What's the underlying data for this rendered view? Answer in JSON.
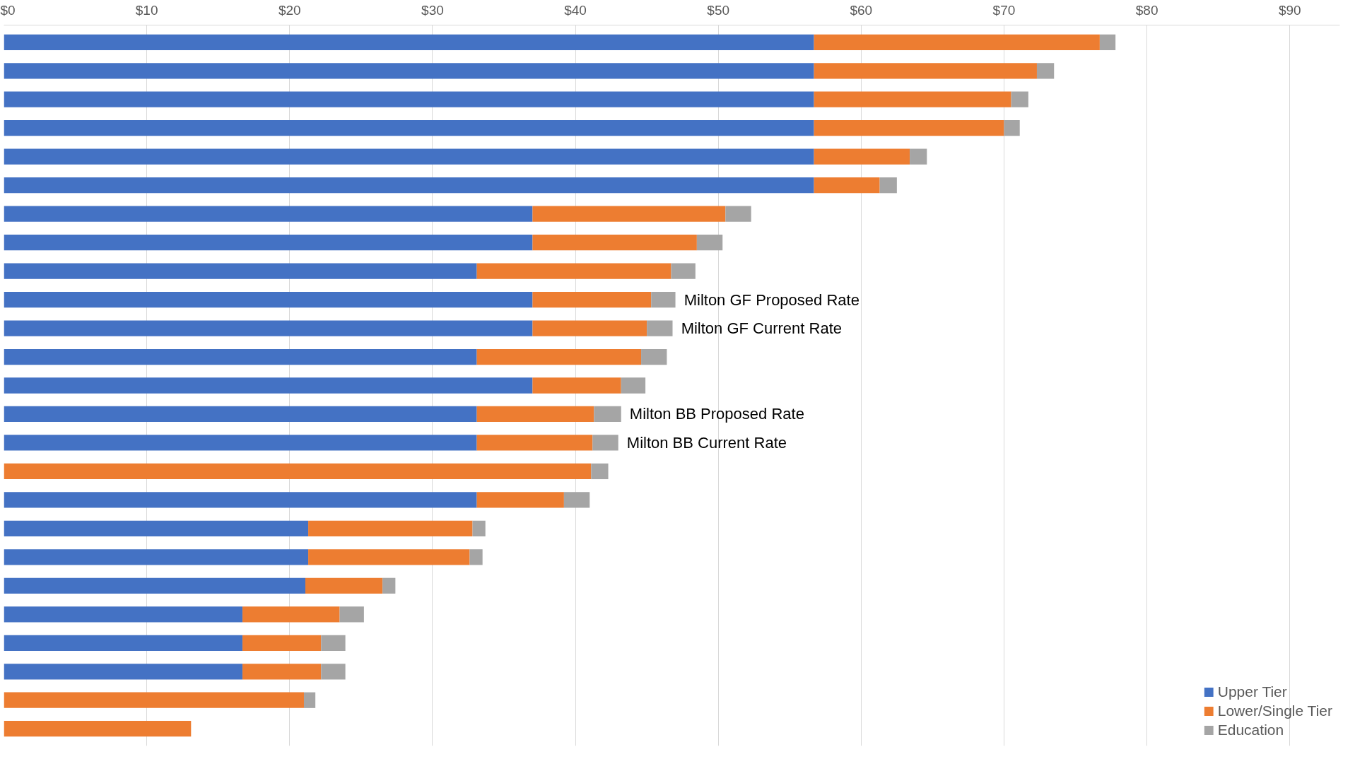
{
  "chart_data": {
    "type": "bar",
    "orientation": "horizontal",
    "stacked": true,
    "categories": [
      null,
      null,
      null,
      null,
      null,
      null,
      null,
      null,
      null,
      "Milton GF Proposed Rate",
      "Milton GF Current Rate",
      null,
      null,
      "Milton BB Proposed Rate",
      "Milton BB Current Rate",
      null,
      null,
      null,
      null,
      null,
      null,
      null,
      null,
      null,
      null
    ],
    "series": [
      {
        "name": "Upper Tier",
        "color": "#4472c4",
        "values": [
          56.7,
          56.7,
          56.7,
          56.7,
          56.7,
          56.7,
          37.0,
          37.0,
          33.1,
          37.0,
          37.0,
          33.1,
          37.0,
          33.1,
          33.1,
          0,
          33.1,
          21.3,
          21.3,
          21.1,
          16.7,
          16.7,
          16.7,
          0,
          0
        ]
      },
      {
        "name": "Lower/Single Tier",
        "color": "#ed7d31",
        "values": [
          20.0,
          15.6,
          13.8,
          13.3,
          6.7,
          4.6,
          13.5,
          11.5,
          13.6,
          8.3,
          8.0,
          11.5,
          6.2,
          8.2,
          8.1,
          41.1,
          6.1,
          11.5,
          11.3,
          5.4,
          6.8,
          5.5,
          5.5,
          21.0,
          13.1
        ]
      },
      {
        "name": "Education",
        "color": "#a5a5a5",
        "values": [
          1.1,
          1.2,
          1.2,
          1.1,
          1.2,
          1.2,
          1.8,
          1.8,
          1.7,
          1.7,
          1.8,
          1.8,
          1.7,
          1.9,
          1.8,
          1.2,
          1.8,
          0.9,
          0.9,
          0.9,
          1.7,
          1.7,
          1.7,
          0.8,
          0
        ]
      }
    ],
    "xlim": [
      0,
      93.5
    ],
    "xticks": [
      {
        "value": 0,
        "label": "$0"
      },
      {
        "value": 10,
        "label": "$10"
      },
      {
        "value": 20,
        "label": "$20"
      },
      {
        "value": 30,
        "label": "$30"
      },
      {
        "value": 40,
        "label": "$40"
      },
      {
        "value": 50,
        "label": "$50"
      },
      {
        "value": 60,
        "label": "$60"
      },
      {
        "value": 70,
        "label": "$70"
      },
      {
        "value": 80,
        "label": "$80"
      },
      {
        "value": 90,
        "label": "$90"
      }
    ],
    "grid": "x",
    "legend": "bottom right"
  }
}
